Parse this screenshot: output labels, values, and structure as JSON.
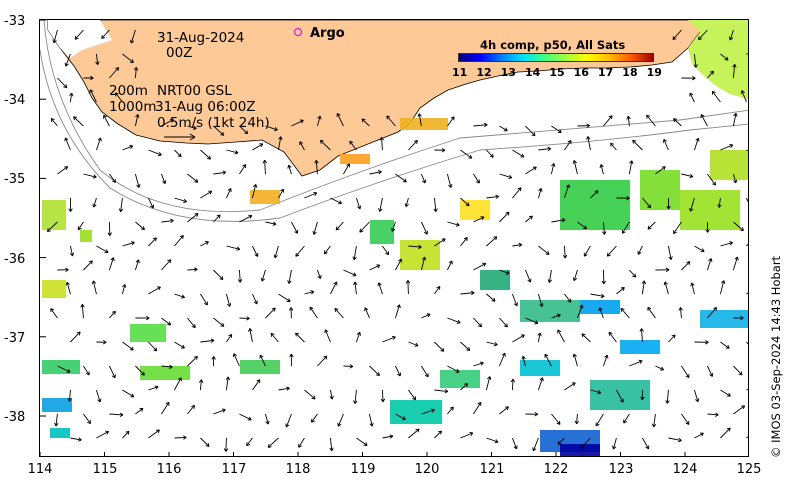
{
  "map": {
    "title_date": "31-Aug-2024",
    "title_time": "00Z",
    "argo_label": "Argo",
    "contour_label": "200m",
    "contour_label_2": "1000m",
    "source_label": "NRT00 GSL",
    "vector_time": "31-Aug 06:00Z",
    "scale_label": "0.5m/s (1kt 24h)",
    "colorbar_title": "4h comp, p50, All Sats",
    "colorbar_ticks": [
      "11",
      "12",
      "13",
      "14",
      "15",
      "16",
      "17",
      "18",
      "19"
    ],
    "credit": "© IMOS 03-Sep-2024 14:43 Hobart",
    "y_ticks": [
      "-33",
      "-34",
      "-35",
      "-36",
      "-37",
      "-38"
    ],
    "x_ticks": [
      "114",
      "115",
      "116",
      "117",
      "118",
      "119",
      "120",
      "121",
      "122",
      "123",
      "124",
      "125"
    ],
    "colors": {
      "land": "#fdc997",
      "argo": "#e000e0"
    }
  }
}
